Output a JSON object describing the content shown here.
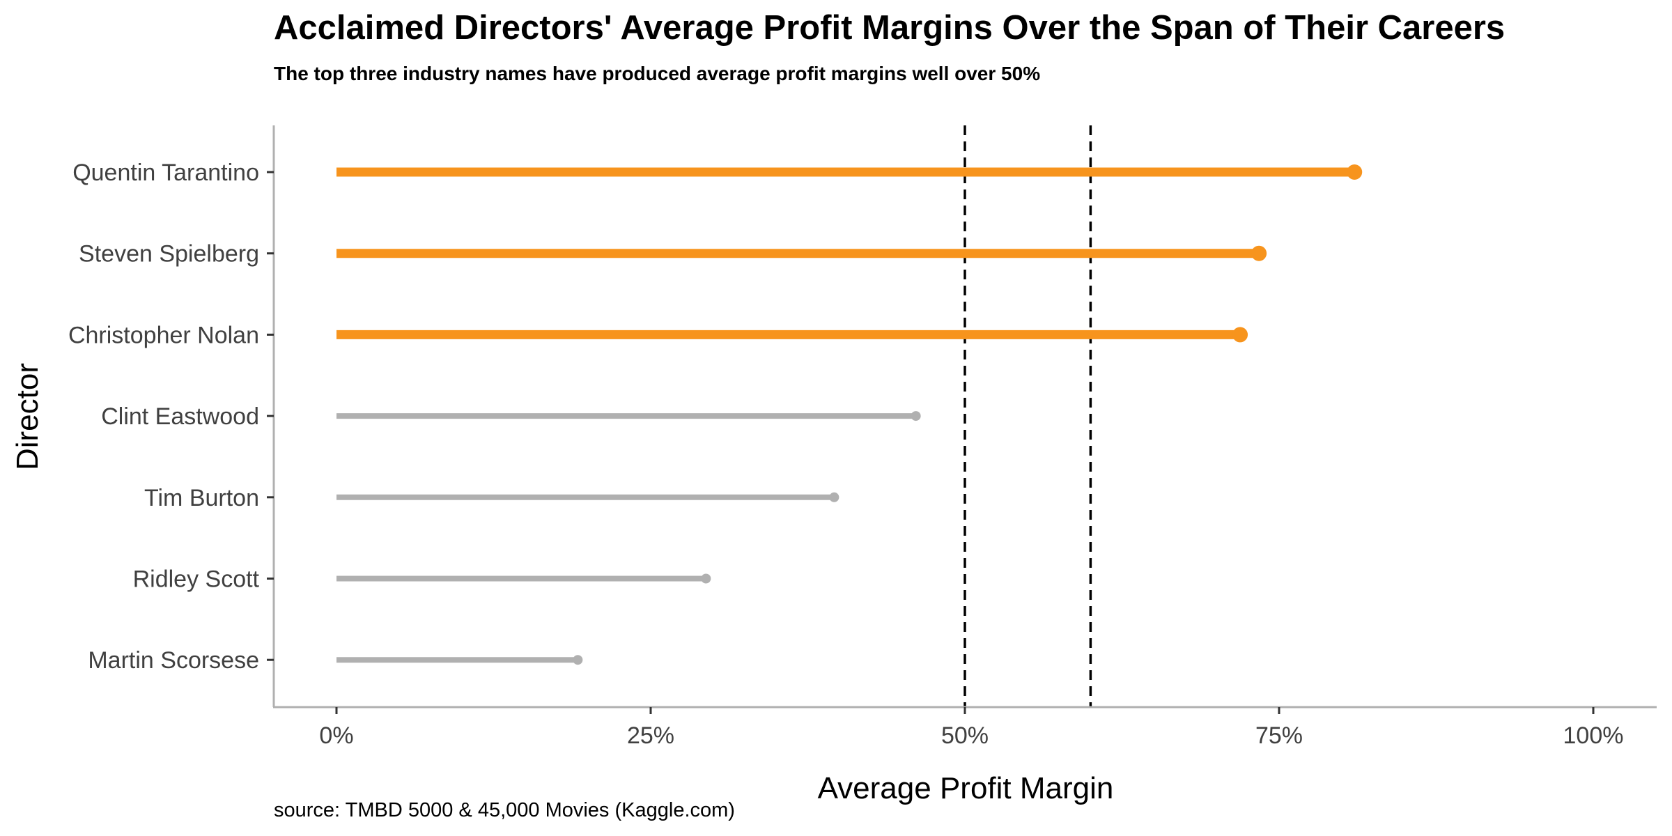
{
  "chart_data": {
    "type": "lollipop",
    "title": "Acclaimed Directors' Average Profit Margins Over the Span of Their Careers",
    "subtitle": "The top three industry names have produced average profit margins well over 50%",
    "xlabel": "Average Profit Margin",
    "ylabel": "Director",
    "caption": "source: TMBD 5000 & 45,000 Movies (Kaggle.com)",
    "xlim": [
      0,
      1
    ],
    "x_ticks": [
      {
        "value": 0,
        "label": "0%"
      },
      {
        "value": 0.25,
        "label": "25%"
      },
      {
        "value": 0.5,
        "label": "50%"
      },
      {
        "value": 0.75,
        "label": "75%"
      },
      {
        "value": 1,
        "label": "100%"
      }
    ],
    "reference_lines": [
      0.5,
      0.6
    ],
    "grid": false,
    "highlight_color": "#F7941D",
    "base_color": "#B0B0B0",
    "directors": [
      {
        "name": "Quentin Tarantino",
        "value": 0.81,
        "highlight": true
      },
      {
        "name": "Steven Spielberg",
        "value": 0.734,
        "highlight": true
      },
      {
        "name": "Christopher Nolan",
        "value": 0.719,
        "highlight": true
      },
      {
        "name": "Clint Eastwood",
        "value": 0.461,
        "highlight": false
      },
      {
        "name": "Tim Burton",
        "value": 0.396,
        "highlight": false
      },
      {
        "name": "Ridley Scott",
        "value": 0.294,
        "highlight": false
      },
      {
        "name": "Martin Scorsese",
        "value": 0.192,
        "highlight": false
      }
    ]
  }
}
